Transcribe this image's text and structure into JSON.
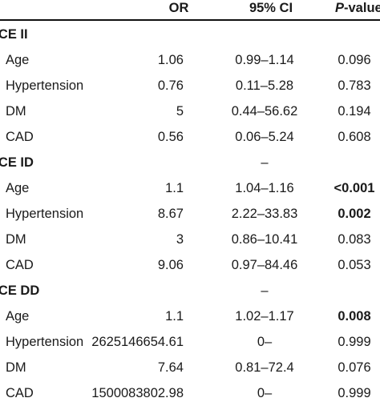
{
  "header": {
    "or": "OR",
    "ci": "95% CI",
    "p_italic": "P",
    "p_rest": "-value"
  },
  "groups": [
    {
      "title": "ACE II",
      "ci": "",
      "or": "",
      "p": "",
      "rows": [
        {
          "label": "Age",
          "or": "1.06",
          "ci": "0.99–1.14",
          "p": "0.096",
          "p_bold": false
        },
        {
          "label": "Hypertension",
          "or": "0.76",
          "ci": "0.11–5.28",
          "p": "0.783",
          "p_bold": false
        },
        {
          "label": "DM",
          "or": "5",
          "ci": "0.44–56.62",
          "p": "0.194",
          "p_bold": false
        },
        {
          "label": "CAD",
          "or": "0.56",
          "ci": "0.06–5.24",
          "p": "0.608",
          "p_bold": false
        }
      ]
    },
    {
      "title": "ACE ID",
      "ci": "–",
      "or": "",
      "p": "",
      "rows": [
        {
          "label": "Age",
          "or": "1.1",
          "ci": "1.04–1.16",
          "p": "<0.001",
          "p_bold": true
        },
        {
          "label": "Hypertension",
          "or": "8.67",
          "ci": "2.22–33.83",
          "p": "0.002",
          "p_bold": true
        },
        {
          "label": "DM",
          "or": "3",
          "ci": "0.86–10.41",
          "p": "0.083",
          "p_bold": false
        },
        {
          "label": "CAD",
          "or": "9.06",
          "ci": "0.97–84.46",
          "p": "0.053",
          "p_bold": false
        }
      ]
    },
    {
      "title": "ACE DD",
      "ci": "–",
      "or": "",
      "p": "",
      "rows": [
        {
          "label": "Age",
          "or": "1.1",
          "ci": "1.02–1.17",
          "p": "0.008",
          "p_bold": true
        },
        {
          "label": "Hypertension",
          "or": "2625146654.61",
          "ci": "0–",
          "p": "0.999",
          "p_bold": false
        },
        {
          "label": "DM",
          "or": "7.64",
          "ci": "0.81–72.4",
          "p": "0.076",
          "p_bold": false
        },
        {
          "label": "CAD",
          "or": "1500083802.98",
          "ci": "0–",
          "p": "0.999",
          "p_bold": false
        }
      ]
    }
  ]
}
